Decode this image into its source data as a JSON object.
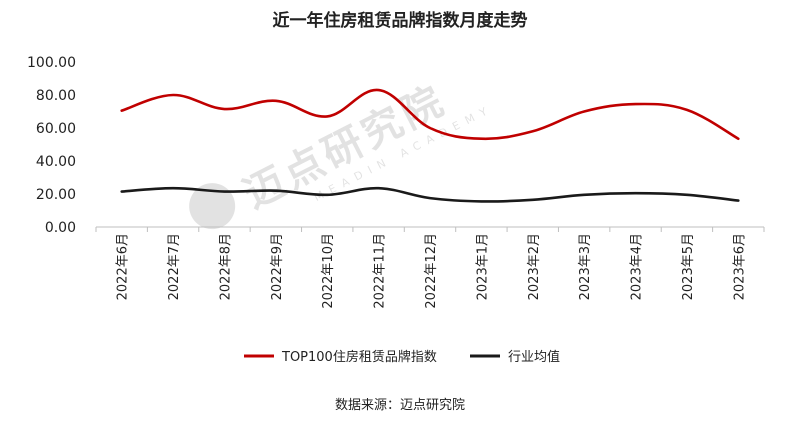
{
  "chart_data": {
    "type": "line",
    "title": "近一年住房租赁品牌指数月度走势",
    "categories": [
      "2022年6月",
      "2022年7月",
      "2022年8月",
      "2022年9月",
      "2022年10月",
      "2022年11月",
      "2022年12月",
      "2023年1月",
      "2023年2月",
      "2023年3月",
      "2023年4月",
      "2023年5月",
      "2023年6月"
    ],
    "series": [
      {
        "name": "TOP100住房租赁品牌指数",
        "color": "#c00000",
        "values": [
          70.5,
          80.0,
          71.5,
          76.5,
          67.0,
          83.0,
          60.0,
          53.5,
          58.0,
          70.0,
          74.5,
          71.0,
          53.5
        ]
      },
      {
        "name": "行业均值",
        "color": "#1a1a1a",
        "values": [
          21.5,
          23.5,
          21.5,
          22.0,
          19.5,
          23.5,
          17.5,
          15.5,
          16.5,
          19.5,
          20.5,
          19.5,
          16.0
        ]
      }
    ],
    "yticks": [
      "0.00",
      "20.00",
      "40.00",
      "60.00",
      "80.00",
      "100.00"
    ],
    "ylim": [
      0,
      100
    ],
    "legend_position": "bottom",
    "grid": false
  },
  "source_note": "数据来源：迈点研究院",
  "watermark": {
    "text": "迈点研究院",
    "subtext": "MEADIN ACADEMY"
  }
}
